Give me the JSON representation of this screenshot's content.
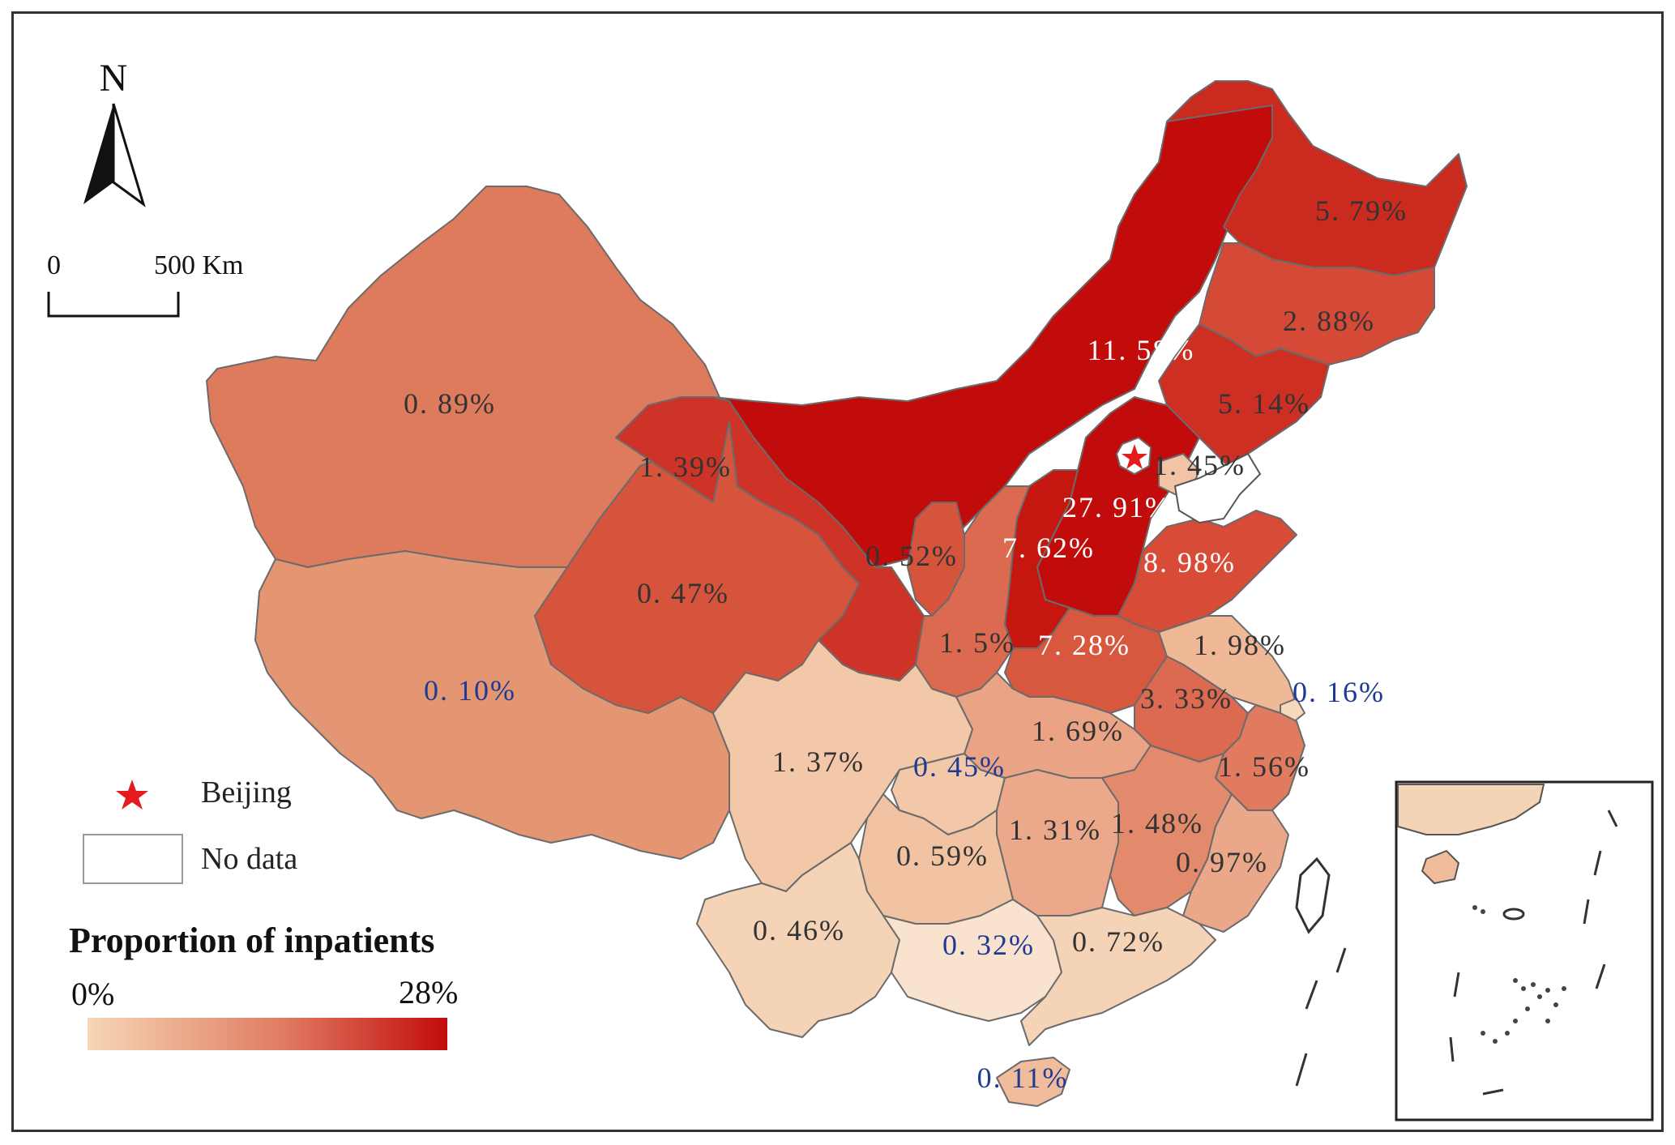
{
  "legend": {
    "beijing_label": "Beijing",
    "no_data_label": "No data",
    "title": "Proportion of inpatients",
    "min_label": "0%",
    "max_label": "28%",
    "ramp_start": "#f6d7b6",
    "ramp_mid": "#e07a60",
    "ramp_end": "#c20c0c"
  },
  "north_arrow": {
    "letter": "N"
  },
  "scale_bar": {
    "start_label": "0",
    "end_label": "500 Km"
  },
  "colors": {
    "border": "#6b6b6b",
    "coast": "#555555",
    "beijing_star": "#e41a1c",
    "label_dark": "#333333",
    "label_light": "#ffffff",
    "label_blue": "#1f3a93"
  },
  "regions": [
    {
      "id": "xinjiang",
      "value": "0. 89%",
      "color": "#de7b5d",
      "text": "dark"
    },
    {
      "id": "tibet",
      "value": "0. 10%",
      "color": "#e49673",
      "text": "blue"
    },
    {
      "id": "qinghai",
      "value": "0. 47%",
      "color": "#d6533c",
      "text": "dark"
    },
    {
      "id": "gansu",
      "value": "1. 39%",
      "color": "#cd3326",
      "text": "dark"
    },
    {
      "id": "inner-mongolia",
      "value": "11. 58%",
      "color": "#c20c0c",
      "text": "light"
    },
    {
      "id": "heilongjiang",
      "value": "5. 79%",
      "color": "#cb2a1e",
      "text": "dark"
    },
    {
      "id": "jilin",
      "value": "2. 88%",
      "color": "#d44a37",
      "text": "dark"
    },
    {
      "id": "liaoning",
      "value": "5. 14%",
      "color": "#cd2f22",
      "text": "dark"
    },
    {
      "id": "tianjin",
      "value": "1. 45%",
      "color": "#f2c4a5",
      "text": "dark"
    },
    {
      "id": "hebei",
      "value": "27. 91%",
      "color": "#c20c0c",
      "text": "light"
    },
    {
      "id": "shanxi",
      "value": "7. 62%",
      "color": "#c5170f",
      "text": "light"
    },
    {
      "id": "shandong",
      "value": "8. 98%",
      "color": "#d84b37",
      "text": "light"
    },
    {
      "id": "ningxia",
      "value": "0. 52%",
      "color": "#d6533c",
      "text": "dark"
    },
    {
      "id": "shaanxi",
      "value": "1. 5%",
      "color": "#dc6a50",
      "text": "dark"
    },
    {
      "id": "henan",
      "value": "7. 28%",
      "color": "#d8573f",
      "text": "light"
    },
    {
      "id": "jiangsu",
      "value": "1. 98%",
      "color": "#efb896",
      "text": "dark"
    },
    {
      "id": "shanghai",
      "value": "0. 16%",
      "color": "#f6d9bd",
      "text": "blue"
    },
    {
      "id": "anhui",
      "value": "3. 33%",
      "color": "#dc6a50",
      "text": "dark"
    },
    {
      "id": "hubei",
      "value": "1. 69%",
      "color": "#eaa485",
      "text": "dark"
    },
    {
      "id": "sichuan",
      "value": "1. 37%",
      "color": "#f2c8a8",
      "text": "dark"
    },
    {
      "id": "chongqing",
      "value": "0. 45%",
      "color": "#f2c8a8",
      "text": "blue"
    },
    {
      "id": "zhejiang",
      "value": "1. 56%",
      "color": "#e07b5f",
      "text": "dark"
    },
    {
      "id": "hunan",
      "value": "1. 31%",
      "color": "#eba88a",
      "text": "dark"
    },
    {
      "id": "jiangxi",
      "value": "1. 48%",
      "color": "#e48a6c",
      "text": "dark"
    },
    {
      "id": "guizhou",
      "value": "0. 59%",
      "color": "#f1c3a3",
      "text": "dark"
    },
    {
      "id": "fujian",
      "value": "0. 97%",
      "color": "#eba789",
      "text": "dark"
    },
    {
      "id": "yunnan",
      "value": "0. 46%",
      "color": "#f5d3b6",
      "text": "dark"
    },
    {
      "id": "guangxi",
      "value": "0. 32%",
      "color": "#f9e3cf",
      "text": "blue"
    },
    {
      "id": "guangdong",
      "value": "0. 72%",
      "color": "#f5d3b6",
      "text": "dark"
    },
    {
      "id": "hainan",
      "value": "0. 11%",
      "color": "#f0bc9b",
      "text": "blue"
    }
  ]
}
